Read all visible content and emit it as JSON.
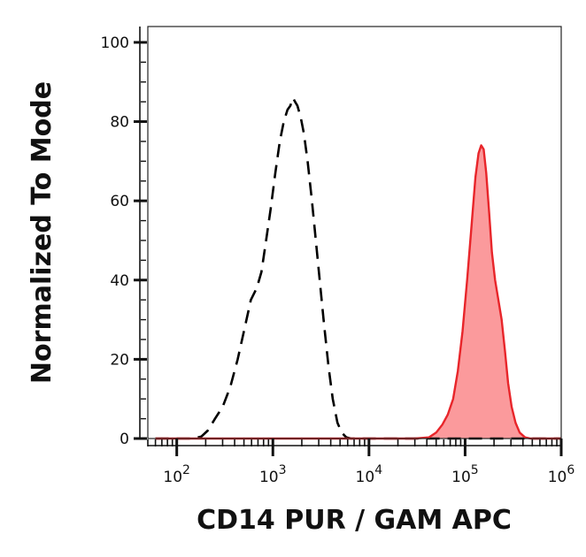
{
  "chart_data": {
    "type": "area",
    "xlabel": "CD14 PUR / GAM APC",
    "ylabel": "Normalized To Mode",
    "xscale": "log",
    "xlim": [
      50,
      1000000
    ],
    "ylim": [
      0,
      104
    ],
    "x_ticks": [
      {
        "value": 100,
        "base": "10",
        "exp": "2"
      },
      {
        "value": 1000,
        "base": "10",
        "exp": "3"
      },
      {
        "value": 10000,
        "base": "10",
        "exp": "4"
      },
      {
        "value": 100000,
        "base": "10",
        "exp": "5"
      },
      {
        "value": 1000000,
        "base": "10",
        "exp": "6"
      }
    ],
    "y_ticks": [
      "0",
      "20",
      "40",
      "60",
      "80",
      "100"
    ],
    "grid": false,
    "series": [
      {
        "style": "dashed",
        "color": "#000000",
        "fill": "none",
        "points": [
          [
            60,
            0
          ],
          [
            100,
            0
          ],
          [
            150,
            0
          ],
          [
            180,
            0.5
          ],
          [
            210,
            2
          ],
          [
            250,
            5
          ],
          [
            300,
            8
          ],
          [
            360,
            13
          ],
          [
            430,
            20
          ],
          [
            510,
            28
          ],
          [
            590,
            35
          ],
          [
            680,
            38
          ],
          [
            760,
            42
          ],
          [
            850,
            50
          ],
          [
            950,
            58
          ],
          [
            1060,
            67
          ],
          [
            1180,
            75
          ],
          [
            1300,
            80
          ],
          [
            1420,
            83
          ],
          [
            1520,
            84
          ],
          [
            1620,
            86
          ],
          [
            1700,
            85
          ],
          [
            1800,
            84
          ],
          [
            1950,
            81
          ],
          [
            2100,
            77
          ],
          [
            2300,
            70
          ],
          [
            2550,
            60
          ],
          [
            2800,
            50
          ],
          [
            3100,
            39
          ],
          [
            3400,
            29
          ],
          [
            3800,
            18
          ],
          [
            4200,
            10
          ],
          [
            4700,
            4
          ],
          [
            5200,
            1.5
          ],
          [
            5800,
            0.3
          ],
          [
            6500,
            0
          ],
          [
            20000,
            0
          ],
          [
            1000000,
            0
          ]
        ]
      },
      {
        "style": "solid",
        "color": "#e8252a",
        "fill": "#fb9a9c",
        "points": [
          [
            60,
            0
          ],
          [
            30000,
            0
          ],
          [
            42000,
            0.3
          ],
          [
            50000,
            1.5
          ],
          [
            58000,
            3.5
          ],
          [
            66000,
            6
          ],
          [
            75000,
            10
          ],
          [
            84000,
            17
          ],
          [
            94000,
            27
          ],
          [
            105000,
            40
          ],
          [
            117000,
            54
          ],
          [
            128000,
            66
          ],
          [
            138000,
            72
          ],
          [
            147000,
            74
          ],
          [
            156000,
            73
          ],
          [
            166000,
            67
          ],
          [
            178000,
            57
          ],
          [
            190000,
            47
          ],
          [
            205000,
            40
          ],
          [
            222000,
            35
          ],
          [
            240000,
            30
          ],
          [
            260000,
            22
          ],
          [
            280000,
            14
          ],
          [
            305000,
            8
          ],
          [
            335000,
            4
          ],
          [
            370000,
            1.5
          ],
          [
            420000,
            0.3
          ],
          [
            480000,
            0
          ],
          [
            1000000,
            0
          ]
        ]
      }
    ]
  }
}
